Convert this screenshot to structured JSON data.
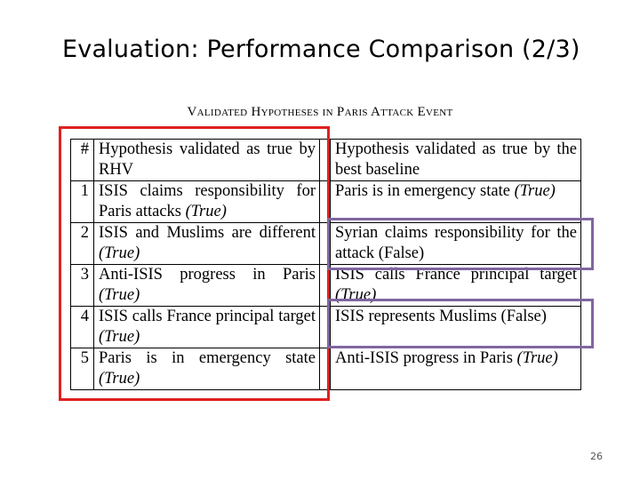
{
  "slide": {
    "title": "Evaluation: Performance Comparison (2/3)",
    "page_number": "26"
  },
  "table": {
    "caption": "Validated Hypotheses in Paris Attack Event",
    "header": {
      "num": "#",
      "rhv": "Hypothesis validated as true by RHV",
      "baseline": "Hypothesis validated as true by the best baseline"
    },
    "rows": [
      {
        "num": "1",
        "rhv": "ISIS claims responsibility for Paris attacks ",
        "rhv_tag": "(True)",
        "baseline": "Paris is in emergency state ",
        "baseline_tag": "(True)"
      },
      {
        "num": "2",
        "rhv": "ISIS and Muslims are different ",
        "rhv_tag": "(True)",
        "baseline": "Syrian claims responsibility for the attack ",
        "baseline_tag": "(False)"
      },
      {
        "num": "3",
        "rhv": "Anti-ISIS progress in Paris ",
        "rhv_tag": "(True)",
        "baseline": "ISIS calls France principal target ",
        "baseline_tag": "(True)"
      },
      {
        "num": "4",
        "rhv": "ISIS calls France principal target ",
        "rhv_tag": "(True)",
        "baseline": "ISIS represents Muslims ",
        "baseline_tag": "(False)"
      },
      {
        "num": "5",
        "rhv": "Paris is in emergency state ",
        "rhv_tag": "(True)",
        "baseline": "Anti-ISIS progress in Paris ",
        "baseline_tag": "(True)"
      }
    ]
  },
  "highlights": {
    "rhv_column_color": "#e02020",
    "false_rows_color": "#8066a0"
  }
}
